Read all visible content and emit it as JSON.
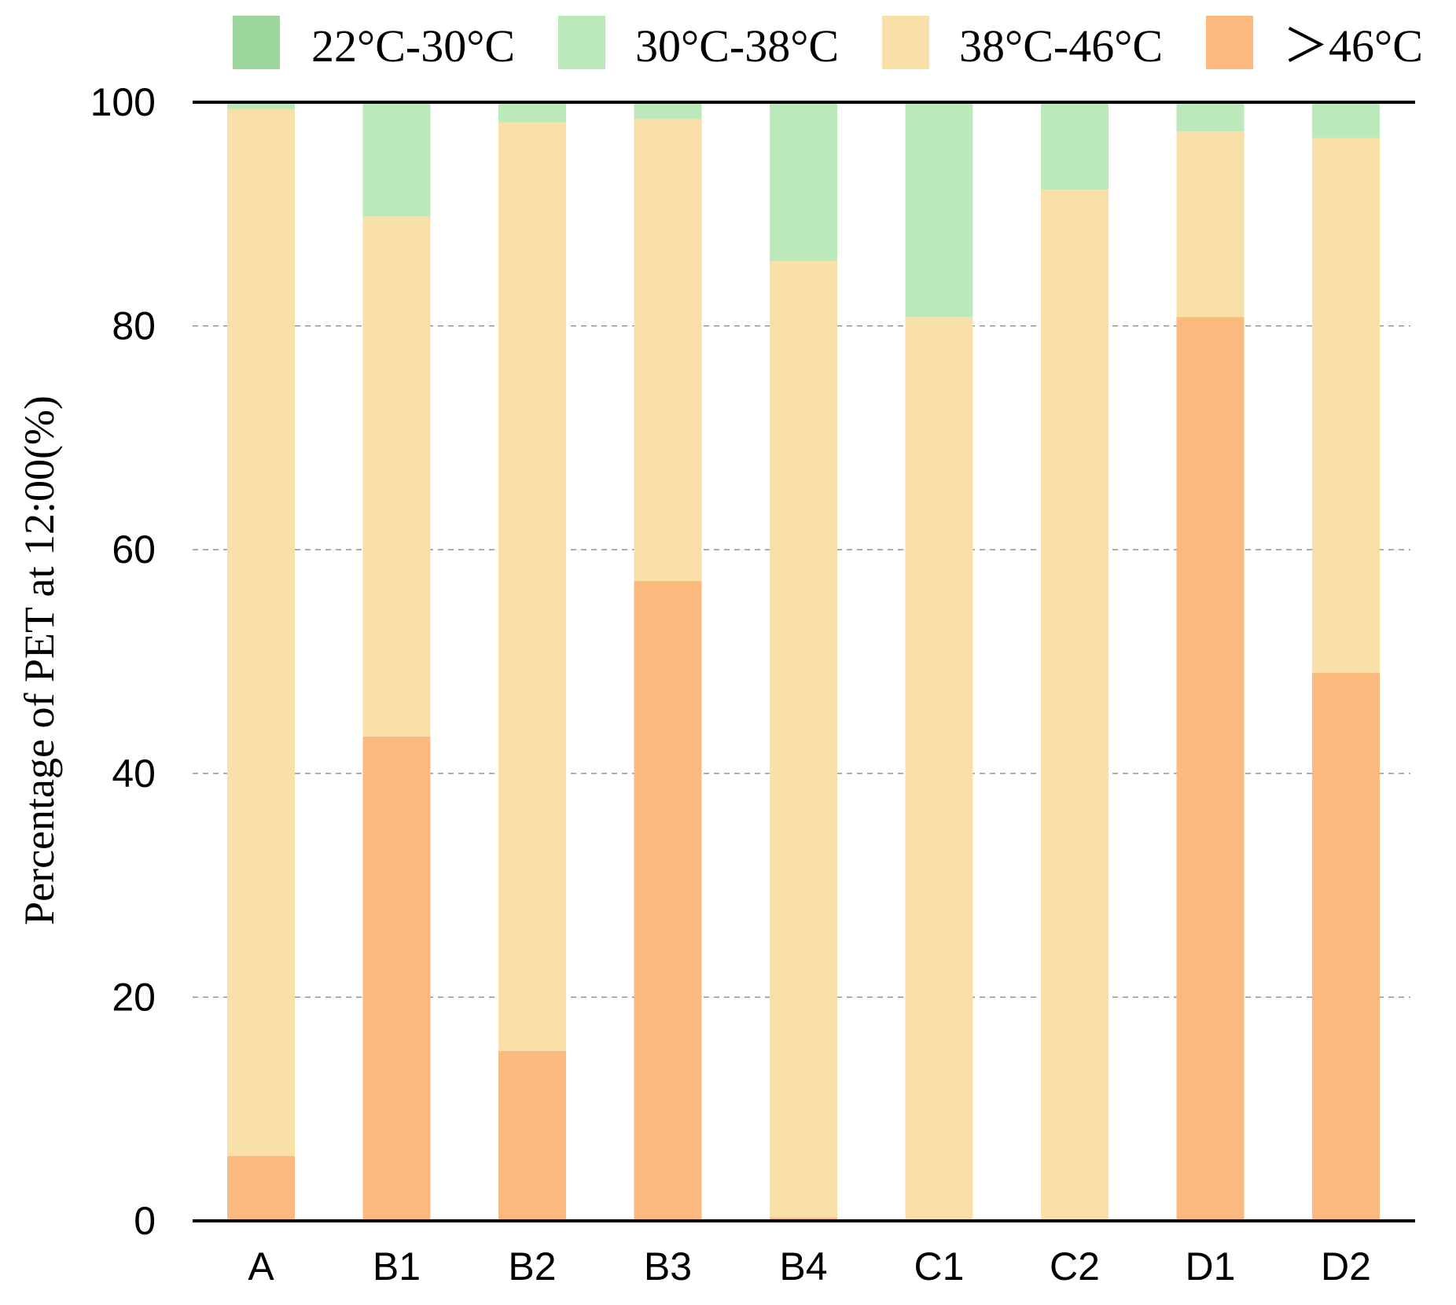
{
  "chart_data": {
    "type": "bar",
    "stacked": true,
    "title": "",
    "xlabel": "",
    "ylabel": "Percentage of PET at 12:00(%)",
    "ylim": [
      0,
      100
    ],
    "yticks": [
      0,
      20,
      40,
      60,
      80,
      100
    ],
    "ytick_labels": [
      "0",
      "20",
      "40",
      "60",
      "80",
      "100"
    ],
    "grid": "dashed horizontal",
    "legend_position": "top",
    "categories": [
      "A",
      "B1",
      "B2",
      "B3",
      "B4",
      "C1",
      "C2",
      "D1",
      "D2"
    ],
    "series": [
      {
        "name": ">46°C",
        "color": "#fbb97d",
        "values": [
          5.8,
          43.3,
          15.2,
          57.2,
          0.3,
          0.0,
          0.0,
          80.8,
          49.0
        ]
      },
      {
        "name": "38°C-46°C",
        "color": "#f8e0a8",
        "values": [
          93.6,
          46.5,
          83.0,
          41.3,
          85.5,
          80.8,
          92.2,
          16.6,
          47.8
        ]
      },
      {
        "name": "30°C-38°C",
        "color": "#bce9bc",
        "values": [
          0.6,
          10.2,
          1.8,
          1.5,
          14.2,
          19.2,
          7.8,
          2.6,
          3.2
        ]
      },
      {
        "name": "22°C-30°C",
        "color": "#9cd69c",
        "values": [
          0,
          0,
          0,
          0,
          0,
          0,
          0,
          0,
          0
        ]
      }
    ],
    "legend_order": [
      "22°C-30°C",
      "30°C-38°C",
      "38°C-46°C",
      ">46°C"
    ],
    "legend_labels": [
      "22°C-30°C",
      "30°C-38°C",
      "38°C-46°C",
      "＞46°C"
    ]
  }
}
